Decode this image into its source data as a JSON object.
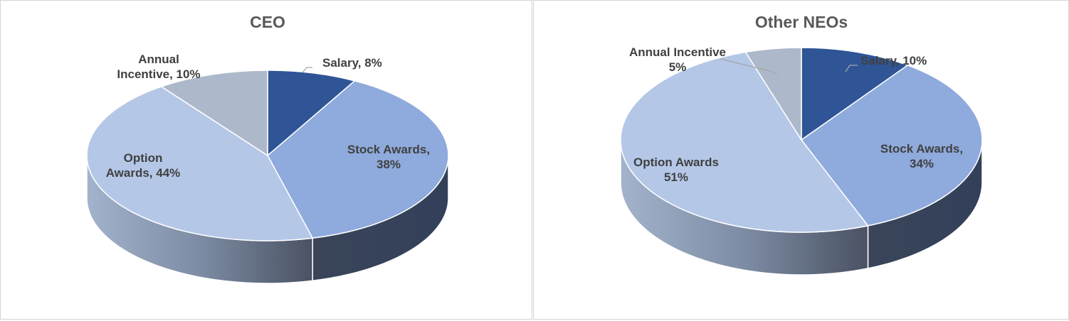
{
  "chart_data": [
    {
      "type": "pie",
      "title": "CEO",
      "slices": [
        {
          "name": "Salary",
          "value": 8,
          "label_lines": [
            "Salary, 8%"
          ],
          "color": "#2f5597"
        },
        {
          "name": "Stock Awards",
          "value": 38,
          "label_lines": [
            "Stock Awards,",
            "38%"
          ],
          "color": "#8faadc"
        },
        {
          "name": "Option Awards",
          "value": 44,
          "label_lines": [
            "Option",
            "Awards, 44%"
          ],
          "color": "#b4c7e7"
        },
        {
          "name": "Annual Incentive",
          "value": 10,
          "label_lines": [
            "Annual",
            "Incentive, 10%"
          ],
          "color": "#adb9ca"
        }
      ]
    },
    {
      "type": "pie",
      "title": "Other NEOs",
      "slices": [
        {
          "name": "Salary",
          "value": 10,
          "label_lines": [
            "Salary, 10%"
          ],
          "color": "#2f5597"
        },
        {
          "name": "Stock Awards",
          "value": 34,
          "label_lines": [
            "Stock Awards,",
            "34%"
          ],
          "color": "#8faadc"
        },
        {
          "name": "Option Awards",
          "value": 51,
          "label_lines": [
            "Option Awards",
            "51%"
          ],
          "color": "#b4c7e7"
        },
        {
          "name": "Annual Incentive",
          "value": 5,
          "label_lines": [
            "Annual Incentive",
            "5%"
          ],
          "color": "#adb9ca"
        }
      ]
    }
  ]
}
